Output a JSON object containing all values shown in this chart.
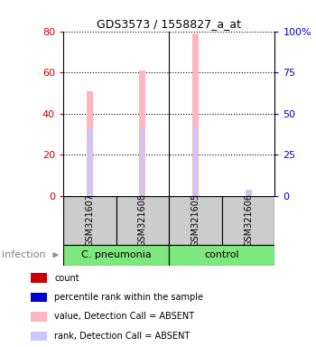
{
  "title": "GDS3573 / 1558827_a_at",
  "samples": [
    "GSM321607",
    "GSM321608",
    "GSM321605",
    "GSM321606"
  ],
  "values": [
    51,
    61,
    79,
    3
  ],
  "ranks": [
    40,
    41,
    43,
    4
  ],
  "value_absent": [
    true,
    true,
    true,
    true
  ],
  "rank_absent": [
    false,
    false,
    false,
    true
  ],
  "ylim_left": [
    0,
    80
  ],
  "ylim_right": [
    0,
    100
  ],
  "yticks_left": [
    0,
    20,
    40,
    60,
    80
  ],
  "yticks_right": [
    0,
    25,
    50,
    75,
    100
  ],
  "left_tick_color": "#cc0000",
  "right_tick_color": "#0000cc",
  "pink_bar_width": 0.12,
  "blue_bar_width": 0.08,
  "sample_box_color": "#cccccc",
  "cpneumonia_color": "#7de87d",
  "control_color": "#7de87d",
  "legend_items": [
    {
      "color": "#cc0000",
      "label": "count"
    },
    {
      "color": "#0000cc",
      "label": "percentile rank within the sample"
    },
    {
      "color": "#ffb6c1",
      "label": "value, Detection Call = ABSENT"
    },
    {
      "color": "#c8c8ff",
      "label": "rank, Detection Call = ABSENT"
    }
  ]
}
